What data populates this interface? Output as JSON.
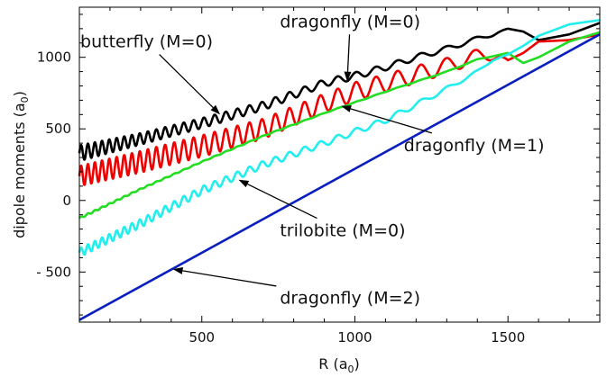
{
  "chart_data": {
    "type": "line",
    "title": "",
    "xlabel": "R (a",
    "xlabel_sub": "0",
    "xlabel_close": ")",
    "ylabel": "dipole moments (a",
    "ylabel_sub": "0",
    "ylabel_close": ")",
    "xlim": [
      100,
      1800
    ],
    "ylim": [
      -850,
      1350
    ],
    "grid": false,
    "xticks": [
      500,
      1000,
      1500
    ],
    "xtick_labels": [
      "500",
      "1000",
      "1500"
    ],
    "yticks": [
      -500,
      0,
      500,
      1000
    ],
    "ytick_labels": [
      "- 500",
      "0",
      "500",
      "1000"
    ],
    "series": [
      {
        "name": "butterfly (M=0)",
        "color": "#000000",
        "x": [
          100,
          300,
          500,
          700,
          900,
          1000,
          1100,
          1200,
          1300,
          1400,
          1450,
          1500,
          1550,
          1600,
          1700,
          1800
        ],
        "y": [
          330,
          430,
          540,
          660,
          820,
          870,
          930,
          1000,
          1060,
          1130,
          1160,
          1200,
          1180,
          1120,
          1160,
          1240
        ],
        "osc_amp": [
          55,
          40,
          35,
          30,
          25,
          25,
          22,
          20,
          18,
          15,
          12,
          0,
          0,
          0,
          0,
          0
        ],
        "osc_period": [
          22,
          26,
          34,
          42,
          55,
          62,
          70,
          78,
          88,
          100,
          110,
          120,
          130,
          140,
          150,
          160
        ]
      },
      {
        "name": "dragonfly (M=0)",
        "color": "#ee0000",
        "x": [
          100,
          300,
          500,
          700,
          900,
          1000,
          1100,
          1200,
          1300,
          1400,
          1450,
          1500,
          1550,
          1600,
          1700,
          1800
        ],
        "y": [
          170,
          270,
          380,
          500,
          680,
          760,
          820,
          880,
          940,
          1010,
          1020,
          980,
          1030,
          1110,
          1120,
          1160
        ],
        "osc_amp": [
          70,
          75,
          75,
          70,
          65,
          65,
          62,
          60,
          55,
          45,
          40,
          0,
          0,
          0,
          0,
          0
        ],
        "osc_period": [
          22,
          26,
          34,
          42,
          55,
          62,
          70,
          78,
          88,
          100,
          110,
          120,
          130,
          140,
          150,
          160
        ]
      },
      {
        "name": "dragonfly (M=1)",
        "color": "#22dd22",
        "x": [
          100,
          300,
          500,
          700,
          900,
          1100,
          1300,
          1400,
          1500,
          1550,
          1600,
          1700,
          1800
        ],
        "y": [
          -125,
          80,
          270,
          450,
          610,
          760,
          900,
          985,
          1030,
          960,
          1000,
          1110,
          1175
        ],
        "osc_amp": [
          6,
          4,
          3,
          3,
          2,
          2,
          2,
          2,
          0,
          0,
          0,
          0,
          0
        ],
        "osc_period": [
          22,
          26,
          34,
          42,
          55,
          70,
          88,
          100,
          120,
          130,
          140,
          150,
          160
        ]
      },
      {
        "name": "trilobite (M=0)",
        "color": "#22eeee",
        "x": [
          100,
          300,
          500,
          700,
          900,
          1100,
          1300,
          1400,
          1450,
          1500,
          1550,
          1600,
          1700,
          1800
        ],
        "y": [
          -365,
          -160,
          70,
          250,
          400,
          560,
          780,
          900,
          980,
          1020,
          1080,
          1150,
          1230,
          1260
        ],
        "osc_amp": [
          30,
          30,
          28,
          25,
          22,
          20,
          15,
          10,
          5,
          0,
          0,
          0,
          0,
          0
        ],
        "osc_period": [
          22,
          26,
          34,
          42,
          55,
          70,
          88,
          100,
          110,
          120,
          130,
          140,
          150,
          160
        ]
      },
      {
        "name": "dragonfly (M=2)",
        "color": "#0a1fbf",
        "x": [
          100,
          1800
        ],
        "y": [
          -835,
          1160
        ],
        "osc_amp": [
          0,
          0
        ],
        "osc_period": [
          100,
          100
        ]
      }
    ],
    "annotations": [
      {
        "text": "butterfly (M=0)",
        "tx": 103,
        "ty": 1070,
        "ax": 560,
        "ay": 600
      },
      {
        "text": "dragonfly (M=0)",
        "tx": 755,
        "ty": 1210,
        "ax": 975,
        "ay": 830
      },
      {
        "text": "dragonfly (M=1)",
        "tx": 1160,
        "ty": 345,
        "ax": 955,
        "ay": 660
      },
      {
        "text": "trilobite (M=0)",
        "tx": 755,
        "ty": -250,
        "ax": 620,
        "ay": 145
      },
      {
        "text": "dragonfly (M=2)",
        "tx": 755,
        "ty": -720,
        "ax": 405,
        "ay": -480
      }
    ]
  }
}
